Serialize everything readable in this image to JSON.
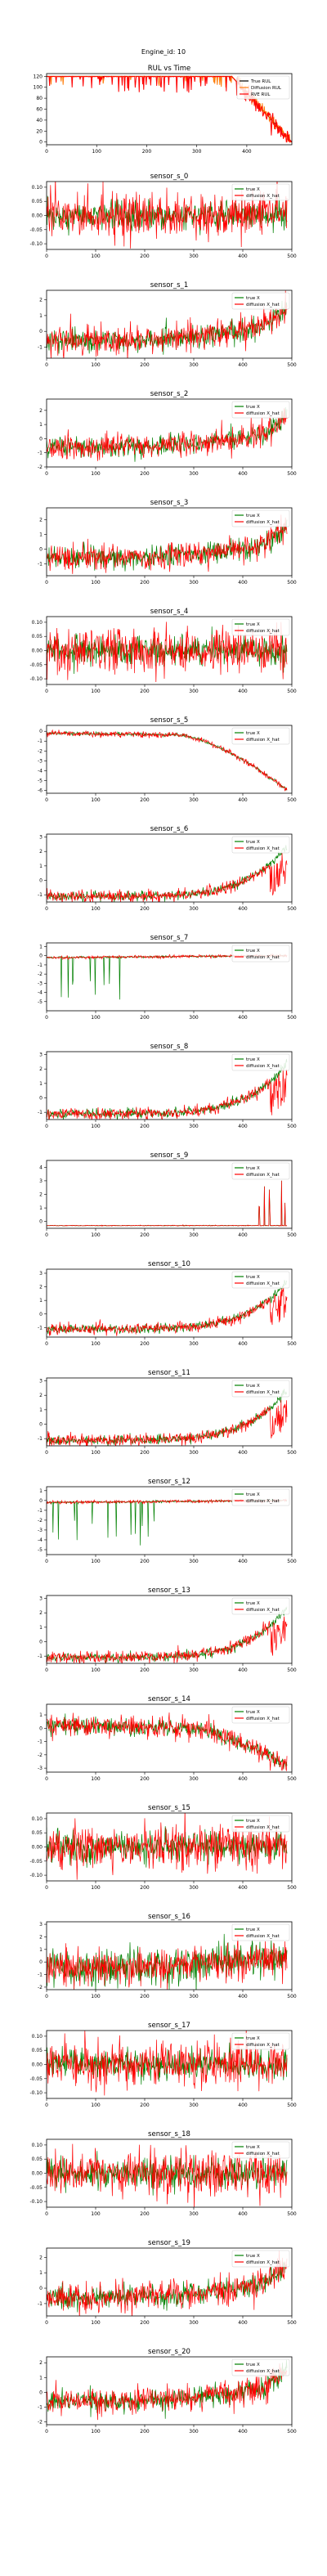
{
  "figure": {
    "suptitle": "Engine_id: 10"
  },
  "colors": {
    "true_rul": "#000000",
    "diffusion_rul": "#ff7f0e",
    "rve_rul": "#ff0000",
    "true_x": "#008000",
    "diffusion_x": "#ff0000"
  },
  "chart_data": [
    {
      "type": "line",
      "title": "RUL vs Time",
      "x_range": [
        0,
        490
      ],
      "ylim": [
        -5,
        125
      ],
      "xticks": [
        0,
        100,
        200,
        300,
        400
      ],
      "yticks": [
        0,
        20,
        40,
        60,
        80,
        100,
        120
      ],
      "legend": "top-right",
      "series": [
        {
          "name": "True RUL",
          "color": "#000000",
          "generator": "rul_true"
        },
        {
          "name": "Diffusion RUL",
          "color": "#ff7f0e",
          "generator": "rul_diff"
        },
        {
          "name": "RVE RUL",
          "color": "#ff0000",
          "generator": "rul_rve"
        }
      ]
    },
    {
      "type": "line",
      "title": "sensor_s_0",
      "ylim": [
        -0.12,
        0.12
      ],
      "yticks": [
        -0.1,
        -0.05,
        0.0,
        0.05,
        0.1
      ],
      "pattern": "noise_small",
      "legend": "top-right",
      "series": [
        {
          "name": "true X",
          "color": "#008000"
        },
        {
          "name": "diffusion X_hat",
          "color": "#ff0000"
        }
      ]
    },
    {
      "type": "line",
      "title": "sensor_s_1",
      "ylim": [
        -1.7,
        2.6
      ],
      "yticks": [
        -1,
        0,
        1,
        2
      ],
      "pattern": "trend_up",
      "legend": "top-right",
      "series": [
        {
          "name": "true X",
          "color": "#008000"
        },
        {
          "name": "diffusion X_hat",
          "color": "#ff0000"
        }
      ]
    },
    {
      "type": "line",
      "title": "sensor_s_2",
      "ylim": [
        -2.0,
        2.8
      ],
      "yticks": [
        -2,
        -1,
        0,
        1,
        2
      ],
      "pattern": "trend_up",
      "legend": "top-right",
      "series": [
        {
          "name": "true X",
          "color": "#008000"
        },
        {
          "name": "diffusion X_hat",
          "color": "#ff0000"
        }
      ]
    },
    {
      "type": "line",
      "title": "sensor_s_3",
      "ylim": [
        -1.8,
        2.8
      ],
      "yticks": [
        -1,
        0,
        1,
        2
      ],
      "pattern": "trend_up",
      "legend": "top-right",
      "series": [
        {
          "name": "true X",
          "color": "#008000"
        },
        {
          "name": "diffusion X_hat",
          "color": "#ff0000"
        }
      ]
    },
    {
      "type": "line",
      "title": "sensor_s_4",
      "ylim": [
        -0.12,
        0.12
      ],
      "yticks": [
        -0.1,
        -0.05,
        0.0,
        0.05,
        0.1
      ],
      "pattern": "noise_small",
      "legend": "top-right",
      "series": [
        {
          "name": "true X",
          "color": "#008000"
        },
        {
          "name": "diffusion X_hat",
          "color": "#ff0000"
        }
      ]
    },
    {
      "type": "line",
      "title": "sensor_s_5",
      "ylim": [
        -6.3,
        0.6
      ],
      "yticks": [
        -6,
        -5,
        -4,
        -3,
        -2,
        -1,
        0
      ],
      "pattern": "trend_down",
      "legend": "top-right",
      "series": [
        {
          "name": "true X",
          "color": "#008000"
        },
        {
          "name": "diffusion X_hat",
          "color": "#ff0000"
        }
      ]
    },
    {
      "type": "line",
      "title": "sensor_s_6",
      "ylim": [
        -1.5,
        3.2
      ],
      "yticks": [
        -1,
        0,
        1,
        2,
        3
      ],
      "pattern": "exp_up",
      "legend": "top-right",
      "series": [
        {
          "name": "true X",
          "color": "#008000"
        },
        {
          "name": "diffusion X_hat",
          "color": "#ff0000"
        }
      ]
    },
    {
      "type": "line",
      "title": "sensor_s_7",
      "ylim": [
        -6.0,
        1.4
      ],
      "yticks": [
        -5,
        -4,
        -3,
        -2,
        -1,
        0,
        1
      ],
      "pattern": "spikes_down",
      "legend": "top-right",
      "series": [
        {
          "name": "true X",
          "color": "#008000"
        },
        {
          "name": "diffusion X_hat",
          "color": "#ff0000"
        }
      ]
    },
    {
      "type": "line",
      "title": "sensor_s_8",
      "ylim": [
        -1.5,
        3.2
      ],
      "yticks": [
        -1,
        0,
        1,
        2,
        3
      ],
      "pattern": "exp_up",
      "legend": "top-right",
      "series": [
        {
          "name": "true X",
          "color": "#008000"
        },
        {
          "name": "diffusion X_hat",
          "color": "#ff0000"
        }
      ]
    },
    {
      "type": "line",
      "title": "sensor_s_9",
      "ylim": [
        -0.5,
        4.5
      ],
      "yticks": [
        0,
        1,
        2,
        3,
        4
      ],
      "pattern": "flat_spike",
      "legend": "top-right",
      "series": [
        {
          "name": "true X",
          "color": "#008000"
        },
        {
          "name": "diffusion X_hat",
          "color": "#ff0000"
        }
      ]
    },
    {
      "type": "line",
      "title": "sensor_s_10",
      "ylim": [
        -1.7,
        3.3
      ],
      "yticks": [
        -1,
        0,
        1,
        2,
        3
      ],
      "pattern": "exp_up",
      "legend": "top-right",
      "series": [
        {
          "name": "true X",
          "color": "#008000"
        },
        {
          "name": "diffusion X_hat",
          "color": "#ff0000"
        }
      ]
    },
    {
      "type": "line",
      "title": "sensor_s_11",
      "ylim": [
        -1.5,
        3.2
      ],
      "yticks": [
        -1,
        0,
        1,
        2,
        3
      ],
      "pattern": "exp_up",
      "legend": "top-right",
      "series": [
        {
          "name": "true X",
          "color": "#008000"
        },
        {
          "name": "diffusion X_hat",
          "color": "#ff0000"
        }
      ]
    },
    {
      "type": "line",
      "title": "sensor_s_12",
      "ylim": [
        -5.5,
        1.4
      ],
      "yticks": [
        -5,
        -4,
        -3,
        -2,
        -1,
        0,
        1
      ],
      "pattern": "spikes_down",
      "legend": "top-right",
      "series": [
        {
          "name": "true X",
          "color": "#008000"
        },
        {
          "name": "diffusion X_hat",
          "color": "#ff0000"
        }
      ]
    },
    {
      "type": "line",
      "title": "sensor_s_13",
      "ylim": [
        -1.5,
        3.2
      ],
      "yticks": [
        -1,
        0,
        1,
        2,
        3
      ],
      "pattern": "exp_up",
      "legend": "top-right",
      "series": [
        {
          "name": "true X",
          "color": "#008000"
        },
        {
          "name": "diffusion X_hat",
          "color": "#ff0000"
        }
      ]
    },
    {
      "type": "line",
      "title": "sensor_s_14",
      "ylim": [
        -3.3,
        1.8
      ],
      "yticks": [
        -3,
        -2,
        -1,
        0,
        1
      ],
      "pattern": "trend_down2",
      "legend": "top-right",
      "series": [
        {
          "name": "true X",
          "color": "#008000"
        },
        {
          "name": "diffusion X_hat",
          "color": "#ff0000"
        }
      ]
    },
    {
      "type": "line",
      "title": "sensor_s_15",
      "ylim": [
        -0.12,
        0.12
      ],
      "yticks": [
        -0.1,
        -0.05,
        0.0,
        0.05,
        0.1
      ],
      "pattern": "noise_small",
      "legend": "top-right",
      "series": [
        {
          "name": "true X",
          "color": "#008000"
        },
        {
          "name": "diffusion X_hat",
          "color": "#ff0000"
        }
      ]
    },
    {
      "type": "line",
      "title": "sensor_s_16",
      "ylim": [
        -2.2,
        3.2
      ],
      "yticks": [
        -2,
        -1,
        0,
        1,
        2,
        3
      ],
      "pattern": "trend_up_noisy",
      "legend": "top-right",
      "series": [
        {
          "name": "true X",
          "color": "#008000"
        },
        {
          "name": "diffusion X_hat",
          "color": "#ff0000"
        }
      ]
    },
    {
      "type": "line",
      "title": "sensor_s_17",
      "ylim": [
        -0.12,
        0.12
      ],
      "yticks": [
        -0.1,
        -0.05,
        0.0,
        0.05,
        0.1
      ],
      "pattern": "noise_small",
      "legend": "top-right",
      "series": [
        {
          "name": "true X",
          "color": "#008000"
        },
        {
          "name": "diffusion X_hat",
          "color": "#ff0000"
        }
      ]
    },
    {
      "type": "line",
      "title": "sensor_s_18",
      "ylim": [
        -0.12,
        0.12
      ],
      "yticks": [
        -0.1,
        -0.05,
        0.0,
        0.05,
        0.1
      ],
      "pattern": "noise_small",
      "legend": "top-right",
      "series": [
        {
          "name": "true X",
          "color": "#008000"
        },
        {
          "name": "diffusion X_hat",
          "color": "#ff0000"
        }
      ]
    },
    {
      "type": "line",
      "title": "sensor_s_19",
      "ylim": [
        -1.8,
        2.6
      ],
      "yticks": [
        -1,
        0,
        1,
        2
      ],
      "pattern": "trend_up",
      "legend": "top-right",
      "series": [
        {
          "name": "true X",
          "color": "#008000"
        },
        {
          "name": "diffusion X_hat",
          "color": "#ff0000"
        }
      ]
    },
    {
      "type": "line",
      "title": "sensor_s_20",
      "ylim": [
        -2.2,
        2.4
      ],
      "yticks": [
        -2,
        -1,
        0,
        1,
        2
      ],
      "pattern": "trend_up",
      "legend": "top-right",
      "series": [
        {
          "name": "true X",
          "color": "#008000"
        },
        {
          "name": "diffusion X_hat",
          "color": "#ff0000"
        }
      ]
    }
  ],
  "shared_xticks": [
    0,
    100,
    200,
    300,
    400,
    500
  ]
}
